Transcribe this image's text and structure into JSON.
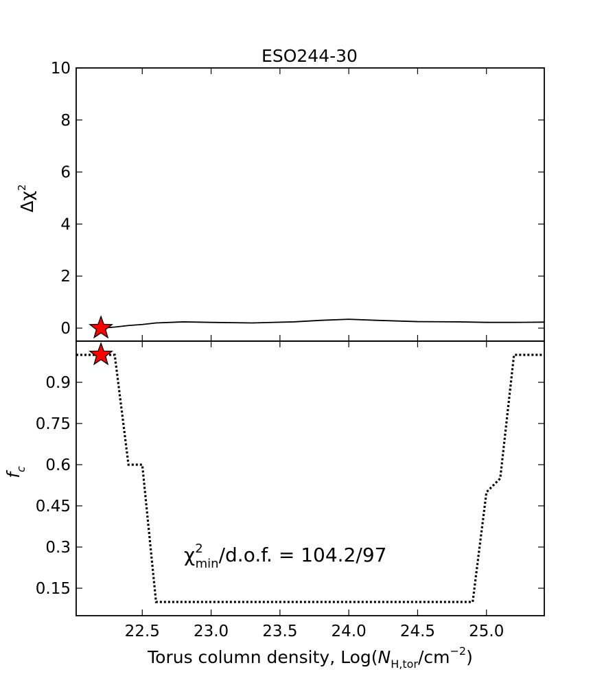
{
  "chart_data": [
    {
      "type": "line",
      "title": "ESO244-30",
      "ylabel": "Δχ",
      "ylabel_sup": "2",
      "xlim": [
        22.02,
        25.42
      ],
      "ylim": [
        -0.5,
        10
      ],
      "yticks": [
        0,
        2,
        4,
        6,
        8,
        10
      ],
      "ytick_labels": [
        "0",
        "2",
        "4",
        "6",
        "8",
        "10"
      ],
      "series": [
        {
          "style": "solid",
          "color": "#000000",
          "x": [
            22.2,
            22.3,
            22.4,
            22.5,
            22.6,
            22.8,
            23.0,
            23.3,
            23.6,
            23.8,
            24.0,
            24.2,
            24.5,
            24.8,
            25.0,
            25.2,
            25.42
          ],
          "y": [
            0.0,
            0.04,
            0.1,
            0.14,
            0.2,
            0.24,
            0.22,
            0.2,
            0.24,
            0.3,
            0.34,
            0.3,
            0.25,
            0.24,
            0.22,
            0.22,
            0.23
          ]
        }
      ],
      "best_fit": {
        "x": 22.2,
        "y": 0.0,
        "marker": "star",
        "color": "#ff0000"
      }
    },
    {
      "type": "line",
      "ylabel": "f",
      "ylabel_sub": "c",
      "xlabel": "Torus column density, Log(",
      "xlabel_var": "N",
      "xlabel_sub": "H,tor",
      "xlabel_unit": "/cm",
      "xlabel_sup": "−2",
      "xlabel_close": ")",
      "xlim": [
        22.02,
        25.42
      ],
      "ylim": [
        0.05,
        1.05
      ],
      "xticks": [
        22.5,
        23.0,
        23.5,
        24.0,
        24.5,
        25.0
      ],
      "xtick_labels": [
        "22.5",
        "23.0",
        "23.5",
        "24.0",
        "24.5",
        "25.0"
      ],
      "yticks": [
        0.15,
        0.3,
        0.45,
        0.6,
        0.75,
        0.9
      ],
      "ytick_labels": [
        "0.15",
        "0.3",
        "0.45",
        "0.6",
        "0.75",
        "0.9"
      ],
      "series": [
        {
          "style": "dotted",
          "color": "#000000",
          "x": [
            22.02,
            22.3,
            22.4,
            22.4,
            22.5,
            22.6,
            23.0,
            23.5,
            24.0,
            24.5,
            24.9,
            25.0,
            25.1,
            25.2,
            25.42
          ],
          "y": [
            1.0,
            1.0,
            0.6,
            0.6,
            0.6,
            0.1,
            0.1,
            0.1,
            0.1,
            0.1,
            0.1,
            0.5,
            0.55,
            1.0,
            1.0
          ]
        }
      ],
      "best_fit": {
        "x": 22.2,
        "y": 1.0,
        "marker": "star",
        "color": "#ff0000"
      },
      "annotation": {
        "sym": "χ",
        "sup": "2",
        "sub": "min",
        "text": "/d.o.f. = 104.2/97"
      }
    }
  ]
}
